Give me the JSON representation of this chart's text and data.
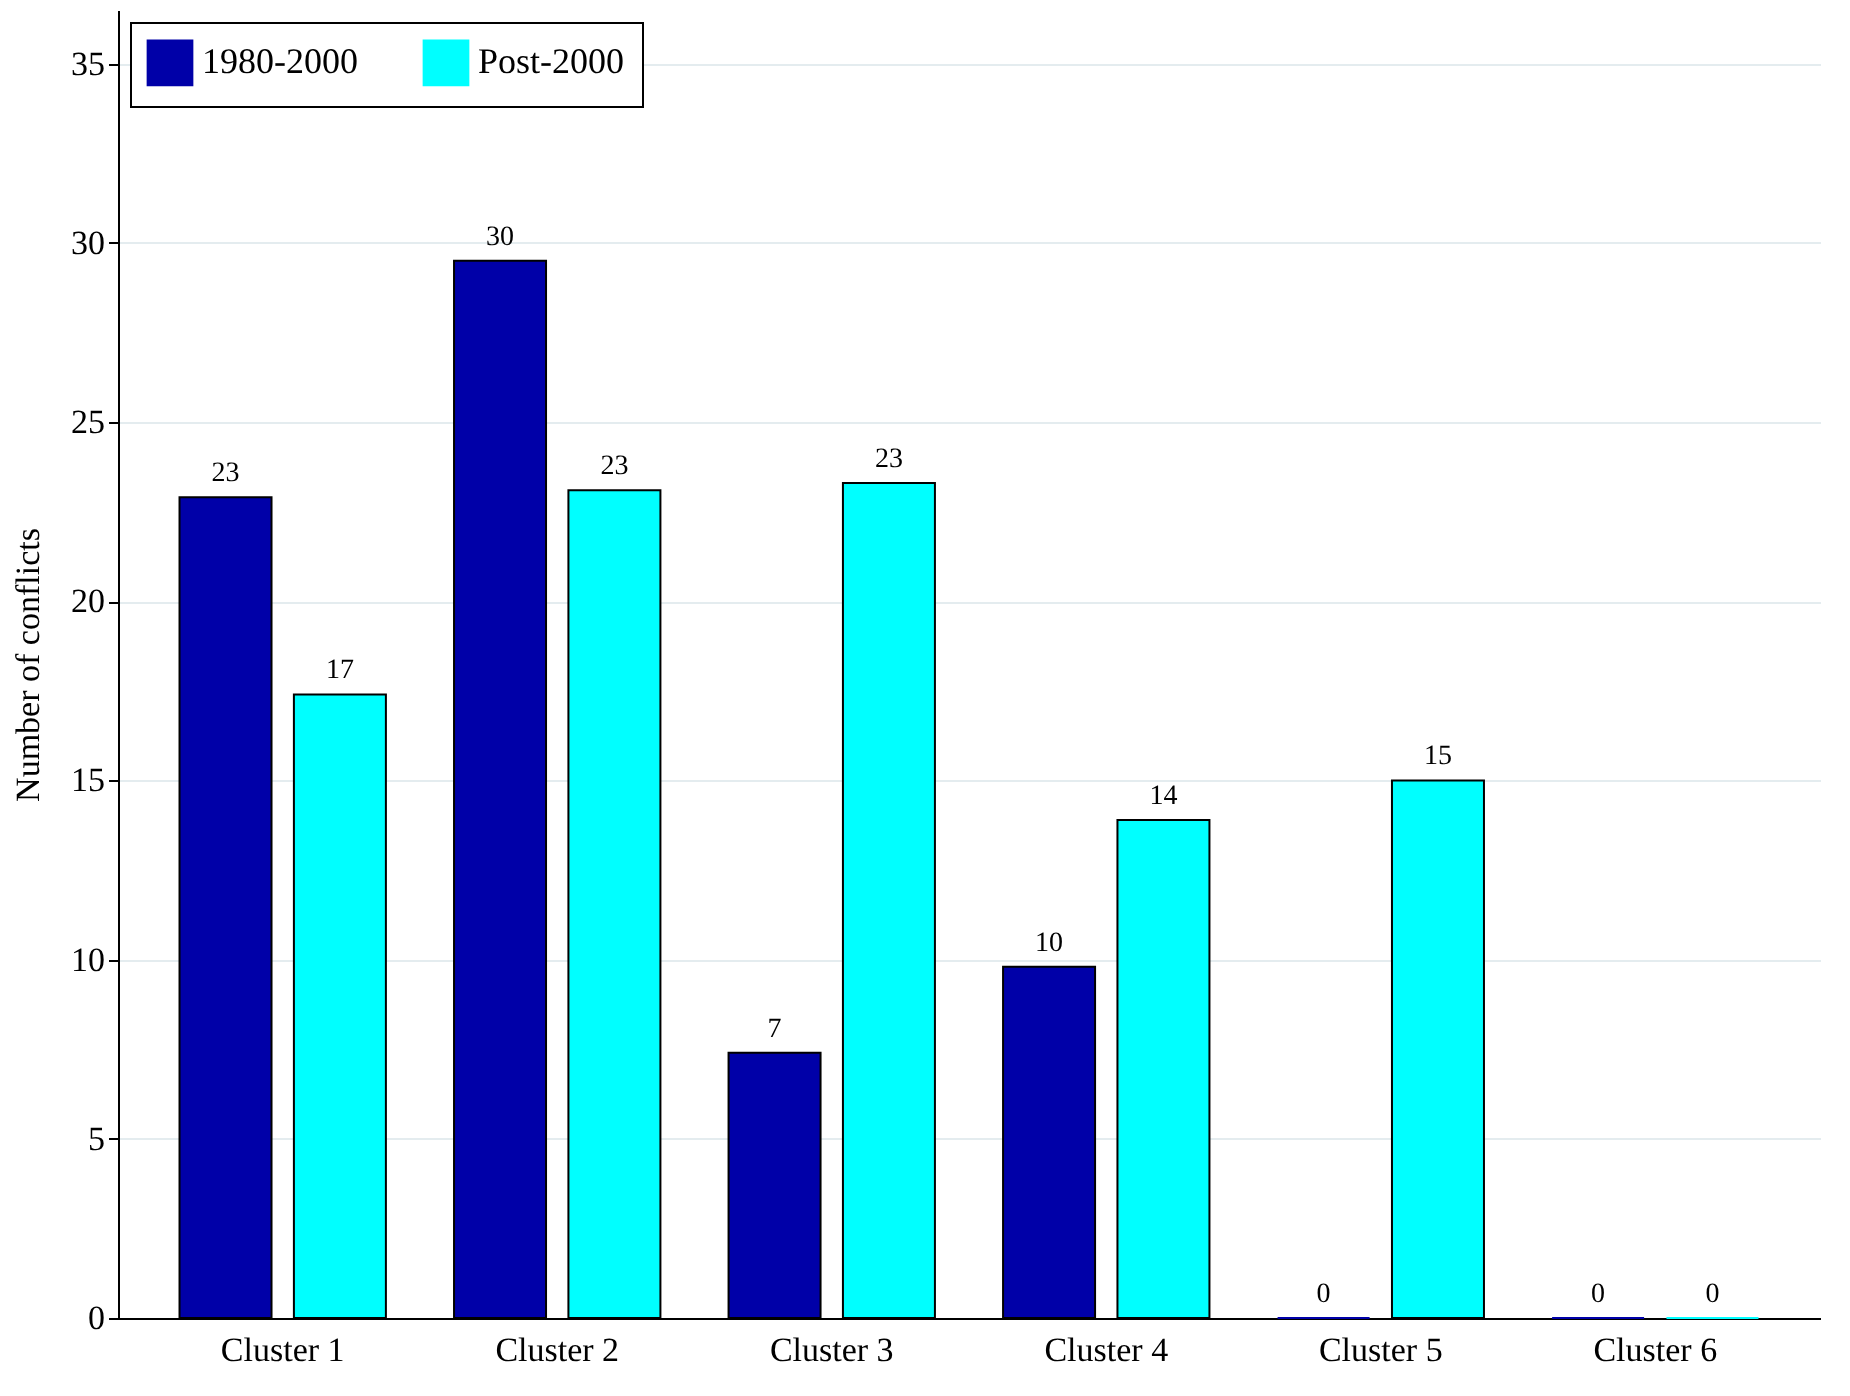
{
  "chart_data": {
    "type": "bar",
    "ylabel": "Number of conflicts",
    "categories": [
      "Cluster 1",
      "Cluster 2",
      "Cluster 3",
      "Cluster 4",
      "Cluster 5",
      "Cluster 6"
    ],
    "series": [
      {
        "name": "1980-2000",
        "color": "#0000a8",
        "values": [
          22.9,
          29.5,
          7.4,
          9.8,
          0,
          0
        ],
        "value_labels": [
          "23",
          "30",
          "7",
          "10",
          "0",
          "0"
        ]
      },
      {
        "name": "Post-2000",
        "color": "#00ffff",
        "values": [
          17.4,
          23.1,
          23.3,
          13.9,
          15.0,
          0
        ],
        "value_labels": [
          "17",
          "23",
          "23",
          "14",
          "15",
          "0"
        ]
      }
    ],
    "ylim": [
      0,
      36.5
    ],
    "yticks": [
      0,
      5,
      10,
      15,
      20,
      25,
      30,
      35
    ],
    "grid": "y",
    "legend": "top left"
  }
}
